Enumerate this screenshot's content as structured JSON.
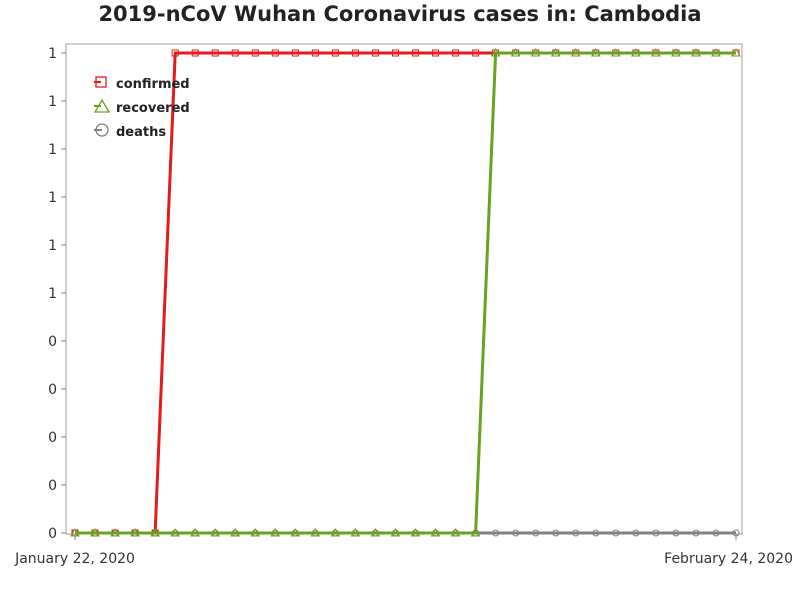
{
  "chart_data": {
    "type": "line",
    "title": "2019-nCoV Wuhan Coronavirus cases in: Cambodia",
    "xlabel": "",
    "ylabel": "",
    "x_tick_labels": [
      "January 22, 2020",
      "February 24, 2020"
    ],
    "y_tick_labels": [
      "0",
      "0",
      "0",
      "0",
      "0",
      "1",
      "1",
      "1",
      "1",
      "1",
      "1"
    ],
    "ylim": [
      0,
      1
    ],
    "grid": false,
    "legend_position": "top-left",
    "x": [
      "2020-01-22",
      "2020-01-23",
      "2020-01-24",
      "2020-01-25",
      "2020-01-26",
      "2020-01-27",
      "2020-01-28",
      "2020-01-29",
      "2020-01-30",
      "2020-01-31",
      "2020-02-01",
      "2020-02-02",
      "2020-02-03",
      "2020-02-04",
      "2020-02-05",
      "2020-02-06",
      "2020-02-07",
      "2020-02-08",
      "2020-02-09",
      "2020-02-10",
      "2020-02-11",
      "2020-02-12",
      "2020-02-13",
      "2020-02-14",
      "2020-02-15",
      "2020-02-16",
      "2020-02-17",
      "2020-02-18",
      "2020-02-19",
      "2020-02-20",
      "2020-02-21",
      "2020-02-22",
      "2020-02-23",
      "2020-02-24"
    ],
    "series": [
      {
        "name": "confirmed",
        "color": "#e41a1c",
        "marker": "square",
        "values": [
          0,
          0,
          0,
          0,
          0,
          1,
          1,
          1,
          1,
          1,
          1,
          1,
          1,
          1,
          1,
          1,
          1,
          1,
          1,
          1,
          1,
          1,
          1,
          1,
          1,
          1,
          1,
          1,
          1,
          1,
          1,
          1,
          1,
          1
        ]
      },
      {
        "name": "recovered",
        "color": "#6aa121",
        "marker": "triangle",
        "values": [
          0,
          0,
          0,
          0,
          0,
          0,
          0,
          0,
          0,
          0,
          0,
          0,
          0,
          0,
          0,
          0,
          0,
          0,
          0,
          0,
          0,
          1,
          1,
          1,
          1,
          1,
          1,
          1,
          1,
          1,
          1,
          1,
          1,
          1
        ]
      },
      {
        "name": "deaths",
        "color": "#808080",
        "marker": "circle",
        "values": [
          0,
          0,
          0,
          0,
          0,
          0,
          0,
          0,
          0,
          0,
          0,
          0,
          0,
          0,
          0,
          0,
          0,
          0,
          0,
          0,
          0,
          0,
          0,
          0,
          0,
          0,
          0,
          0,
          0,
          0,
          0,
          0,
          0,
          0
        ]
      }
    ]
  }
}
